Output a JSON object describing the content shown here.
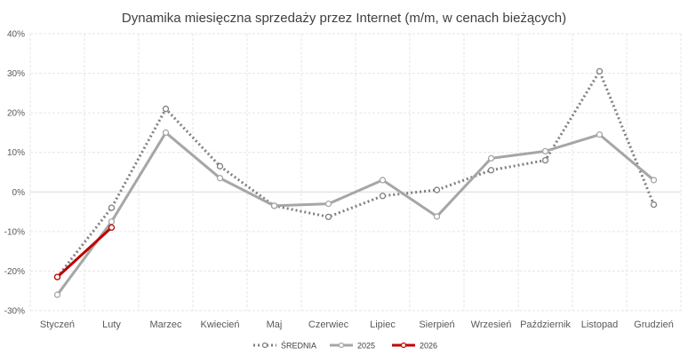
{
  "chart_data": {
    "type": "line",
    "title": "Dynamika miesięczna sprzedaży przez Internet (m/m, w cenach bieżących)",
    "categories": [
      "Styczeń",
      "Luty",
      "Marzec",
      "Kwiecień",
      "Maj",
      "Czerwiec",
      "Lipiec",
      "Sierpień",
      "Wrzesień",
      "Październik",
      "Listopad",
      "Grudzień"
    ],
    "ylim": [
      -30,
      40
    ],
    "yticks": [
      -30,
      -20,
      -10,
      0,
      10,
      20,
      30,
      40
    ],
    "ytick_labels": [
      "-30%",
      "-20%",
      "-10%",
      "0%",
      "10%",
      "20%",
      "30%",
      "40%"
    ],
    "grid": true,
    "legend_position": "bottom",
    "series": [
      {
        "name": "ŚREDNIA",
        "color": "#7f7f7f",
        "style": "dotted",
        "values": [
          -21.5,
          -4,
          21,
          6.5,
          -3.5,
          -6.3,
          -1,
          0.5,
          5.5,
          8,
          30.5,
          -3.2
        ]
      },
      {
        "name": "2025",
        "color": "#a6a6a6",
        "style": "solid",
        "values": [
          -26,
          -7.5,
          15,
          3.5,
          -3.5,
          -3,
          3,
          -6.2,
          8.5,
          10.3,
          14.5,
          3
        ]
      },
      {
        "name": "2026",
        "color": "#c00000",
        "style": "solid",
        "values": [
          -21.5,
          -9,
          null,
          null,
          null,
          null,
          null,
          null,
          null,
          null,
          null,
          null
        ]
      }
    ]
  }
}
